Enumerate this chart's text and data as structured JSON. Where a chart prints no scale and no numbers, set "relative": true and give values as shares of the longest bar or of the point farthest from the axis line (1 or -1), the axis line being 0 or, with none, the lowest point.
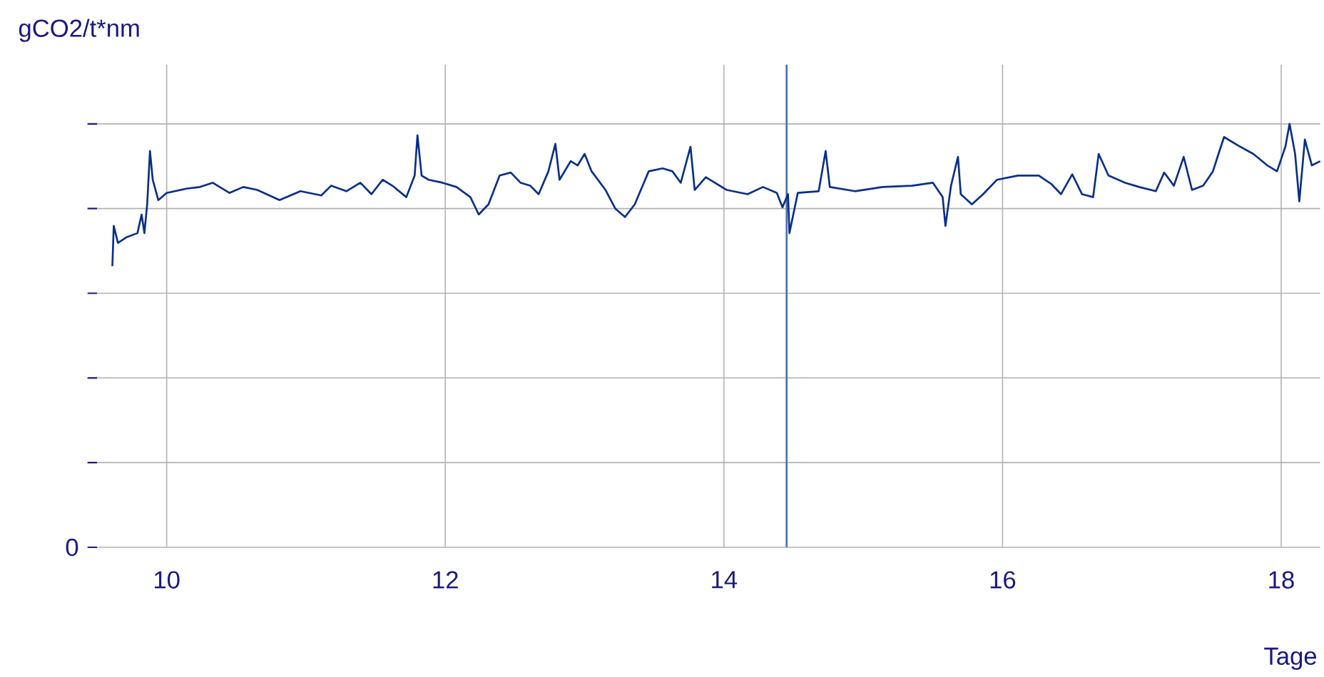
{
  "chart_data": {
    "type": "line",
    "xlabel": "Tage",
    "ylabel": "gCO2/t*nm",
    "relative": true,
    "color": "#0a2f88",
    "grid": true,
    "xlim": [
      9.5,
      18.28
    ],
    "xticks": [
      10,
      12,
      14,
      16,
      18
    ],
    "annotations": [
      "0"
    ],
    "ref_lines": [
      {
        "axis": "x",
        "value": 14.45,
        "color": "#4a72b0"
      }
    ],
    "x": [
      9.61,
      9.62,
      9.65,
      9.71,
      9.79,
      9.82,
      9.84,
      9.86,
      9.88,
      9.9,
      9.94,
      10.0,
      10.14,
      10.24,
      10.33,
      10.45,
      10.55,
      10.65,
      10.81,
      10.96,
      11.11,
      11.18,
      11.29,
      11.39,
      11.47,
      11.55,
      11.62,
      11.72,
      11.78,
      11.8,
      11.83,
      11.88,
      11.98,
      12.08,
      12.18,
      12.24,
      12.31,
      12.39,
      12.47,
      12.54,
      12.61,
      12.67,
      12.74,
      12.79,
      12.82,
      12.9,
      12.95,
      13.0,
      13.05,
      13.15,
      13.22,
      13.29,
      13.36,
      13.46,
      13.56,
      13.63,
      13.69,
      13.76,
      13.79,
      13.87,
      14.02,
      14.17,
      14.28,
      14.38,
      14.42,
      14.46,
      14.47,
      14.53,
      14.68,
      14.73,
      14.76,
      14.94,
      15.14,
      15.35,
      15.5,
      15.57,
      15.59,
      15.63,
      15.68,
      15.7,
      15.78,
      15.86,
      15.96,
      16.11,
      16.26,
      16.35,
      16.42,
      16.5,
      16.57,
      16.65,
      16.69,
      16.76,
      16.88,
      16.98,
      17.1,
      17.16,
      17.23,
      17.3,
      17.36,
      17.44,
      17.51,
      17.55,
      17.59,
      17.69,
      17.8,
      17.9,
      17.97,
      18.03,
      18.06,
      18.1,
      18.13,
      18.17,
      18.22,
      18.28
    ],
    "values": [
      0.664,
      0.759,
      0.719,
      0.732,
      0.742,
      0.786,
      0.742,
      0.81,
      0.936,
      0.868,
      0.82,
      0.837,
      0.847,
      0.851,
      0.861,
      0.837,
      0.851,
      0.844,
      0.82,
      0.841,
      0.831,
      0.854,
      0.841,
      0.861,
      0.834,
      0.868,
      0.854,
      0.827,
      0.878,
      0.973,
      0.878,
      0.868,
      0.861,
      0.851,
      0.827,
      0.786,
      0.81,
      0.878,
      0.885,
      0.861,
      0.854,
      0.834,
      0.888,
      0.953,
      0.868,
      0.912,
      0.902,
      0.929,
      0.888,
      0.844,
      0.8,
      0.78,
      0.81,
      0.888,
      0.895,
      0.888,
      0.861,
      0.946,
      0.844,
      0.874,
      0.844,
      0.834,
      0.851,
      0.837,
      0.803,
      0.834,
      0.742,
      0.837,
      0.841,
      0.936,
      0.851,
      0.841,
      0.851,
      0.854,
      0.861,
      0.827,
      0.759,
      0.854,
      0.922,
      0.834,
      0.81,
      0.834,
      0.868,
      0.878,
      0.878,
      0.858,
      0.834,
      0.881,
      0.834,
      0.827,
      0.929,
      0.878,
      0.861,
      0.851,
      0.841,
      0.885,
      0.854,
      0.922,
      0.844,
      0.854,
      0.888,
      0.929,
      0.969,
      0.949,
      0.929,
      0.902,
      0.888,
      0.946,
      1.0,
      0.929,
      0.817,
      0.963,
      0.902,
      0.912
    ]
  }
}
